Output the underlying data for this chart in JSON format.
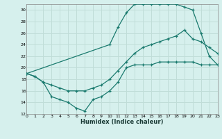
{
  "xlabel": "Humidex (Indice chaleur)",
  "background_color": "#d6f0ed",
  "grid_color": "#c0ddd8",
  "line_color": "#1a7a6e",
  "xlim": [
    0,
    23
  ],
  "ylim": [
    12,
    31
  ],
  "xticks": [
    0,
    1,
    2,
    3,
    4,
    5,
    6,
    7,
    8,
    9,
    10,
    11,
    12,
    13,
    14,
    15,
    16,
    17,
    18,
    19,
    20,
    21,
    22,
    23
  ],
  "yticks": [
    12,
    14,
    16,
    18,
    20,
    22,
    24,
    26,
    28,
    30
  ],
  "series": [
    {
      "x": [
        0,
        10,
        11,
        12,
        13,
        14,
        15,
        16,
        17,
        18,
        19,
        20,
        21,
        22,
        23
      ],
      "y": [
        19.0,
        24.0,
        27.0,
        29.5,
        31.0,
        31.0,
        31.0,
        31.0,
        31.0,
        31.0,
        30.5,
        30.0,
        26.0,
        22.0,
        20.5
      ]
    },
    {
      "x": [
        0,
        1,
        2,
        3,
        4,
        5,
        6,
        7,
        8,
        9,
        10,
        11,
        12,
        13,
        14,
        15,
        16,
        17,
        18,
        19,
        20,
        21,
        22,
        23
      ],
      "y": [
        19.0,
        18.5,
        17.5,
        17.0,
        16.5,
        16.0,
        16.0,
        16.0,
        16.5,
        17.0,
        18.0,
        19.5,
        21.0,
        22.5,
        23.5,
        24.0,
        24.5,
        25.0,
        25.5,
        26.5,
        25.0,
        24.5,
        23.5,
        22.5
      ]
    },
    {
      "x": [
        0,
        1,
        2,
        3,
        4,
        5,
        6,
        7,
        8,
        9,
        10,
        11,
        12,
        13,
        14,
        15,
        16,
        17,
        18,
        19,
        20,
        21,
        22,
        23
      ],
      "y": [
        19.0,
        18.5,
        17.5,
        15.0,
        14.5,
        14.0,
        13.0,
        12.5,
        14.5,
        15.0,
        16.0,
        17.5,
        20.0,
        20.5,
        20.5,
        20.5,
        21.0,
        21.0,
        21.0,
        21.0,
        21.0,
        20.5,
        20.5,
        20.5
      ]
    }
  ]
}
